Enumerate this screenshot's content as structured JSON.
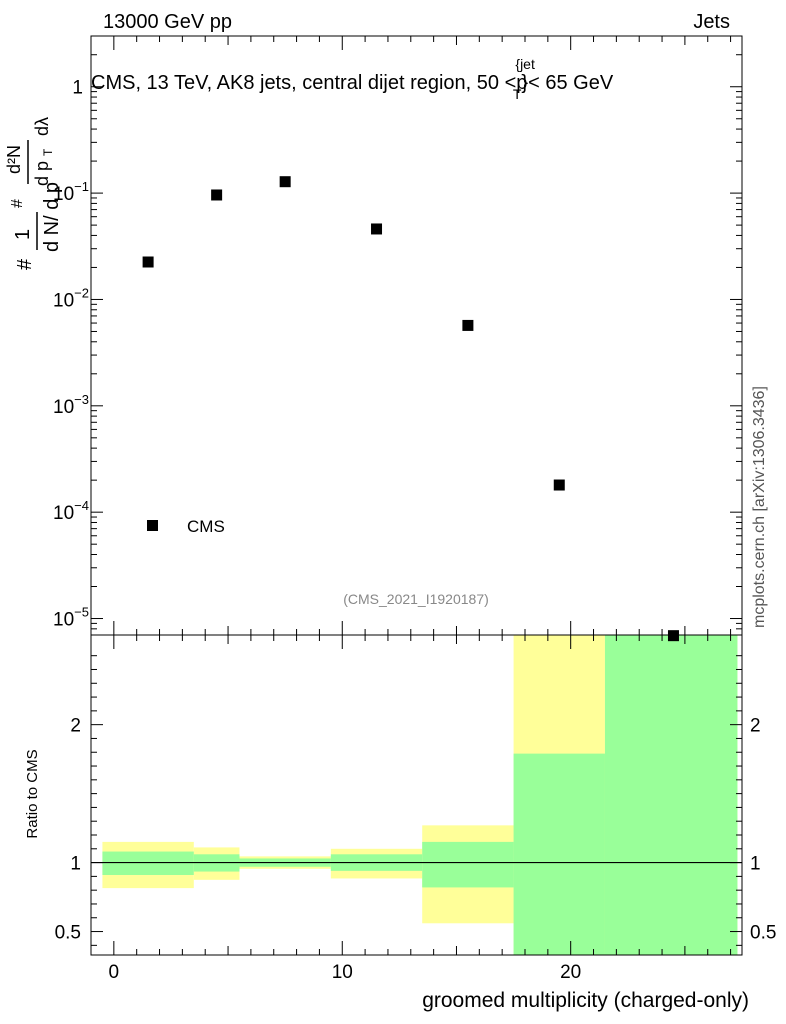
{
  "header": {
    "left": "13000 GeV pp",
    "right": "Jets"
  },
  "side_label": "mcplots.cern.ch [arXiv:1306.3436]",
  "analysis_id": "(CMS_2021_I1920187)",
  "chart_data": [
    {
      "type": "scatter",
      "panel": "main",
      "title": "CMS, 13 TeV, AK8 jets, central dijet region, 50 <p",
      "title_sup": "{jet",
      "title_sub": "T",
      "title_tail": "}< 65 GeV",
      "ylabel": "1/(dN/dpT) d²N/(dpT dλ)",
      "yscale": "log",
      "xlim": [
        -1,
        27.5
      ],
      "ylim": [
        7e-06,
        3
      ],
      "yticks": [
        {
          "v": 1,
          "m": "1",
          "e": ""
        },
        {
          "v": 0.1,
          "m": "10",
          "e": "−1"
        },
        {
          "v": 0.01,
          "m": "10",
          "e": "−2"
        },
        {
          "v": 0.001,
          "m": "10",
          "e": "−3"
        },
        {
          "v": 0.0001,
          "m": "10",
          "e": "−4"
        },
        {
          "v": 1e-05,
          "m": "10",
          "e": "−5"
        }
      ],
      "legend": {
        "label": "CMS",
        "position": "bottom-left"
      },
      "series": [
        {
          "name": "CMS",
          "points": [
            {
              "x": 1.5,
              "y": 0.0225
            },
            {
              "x": 4.5,
              "y": 0.096
            },
            {
              "x": 7.5,
              "y": 0.128
            },
            {
              "x": 11.5,
              "y": 0.046
            },
            {
              "x": 15.5,
              "y": 0.0057
            },
            {
              "x": 19.5,
              "y": 0.00018
            },
            {
              "x": 24.5,
              "y": 6.9e-06
            }
          ]
        }
      ]
    },
    {
      "type": "area",
      "panel": "ratio",
      "ylabel": "Ratio to CMS",
      "xlabel": "groomed multiplicity (charged-only)",
      "xlim": [
        -1,
        27.5
      ],
      "ylim": [
        0.33,
        2.65
      ],
      "xticks": [
        0,
        10,
        20
      ],
      "yticks": [
        0.5,
        1,
        2
      ],
      "reference_line": 1,
      "bands": [
        {
          "name": "total",
          "color": "#ffff99",
          "bins": [
            {
              "x0": -0.5,
              "x1": 3.5,
              "lo": 0.815,
              "hi": 1.15
            },
            {
              "x0": 3.5,
              "x1": 5.5,
              "lo": 0.875,
              "hi": 1.11
            },
            {
              "x0": 5.5,
              "x1": 9.5,
              "lo": 0.955,
              "hi": 1.045
            },
            {
              "x0": 9.5,
              "x1": 13.5,
              "lo": 0.885,
              "hi": 1.1
            },
            {
              "x0": 13.5,
              "x1": 17.5,
              "lo": 0.56,
              "hi": 1.27
            },
            {
              "x0": 17.5,
              "x1": 21.5,
              "lo": 0.33,
              "hi": 2.65
            },
            {
              "x0": 21.5,
              "x1": 27.3,
              "lo": 0.33,
              "hi": 2.65
            }
          ]
        },
        {
          "name": "stat",
          "color": "#99ff99",
          "bins": [
            {
              "x0": -0.5,
              "x1": 3.5,
              "lo": 0.91,
              "hi": 1.08
            },
            {
              "x0": 3.5,
              "x1": 5.5,
              "lo": 0.935,
              "hi": 1.06
            },
            {
              "x0": 5.5,
              "x1": 9.5,
              "lo": 0.97,
              "hi": 1.03
            },
            {
              "x0": 9.5,
              "x1": 13.5,
              "lo": 0.94,
              "hi": 1.06
            },
            {
              "x0": 13.5,
              "x1": 17.5,
              "lo": 0.82,
              "hi": 1.15
            },
            {
              "x0": 17.5,
              "x1": 21.5,
              "lo": 0.33,
              "hi": 1.79
            },
            {
              "x0": 21.5,
              "x1": 27.3,
              "lo": 0.33,
              "hi": 2.65
            }
          ]
        }
      ]
    }
  ]
}
